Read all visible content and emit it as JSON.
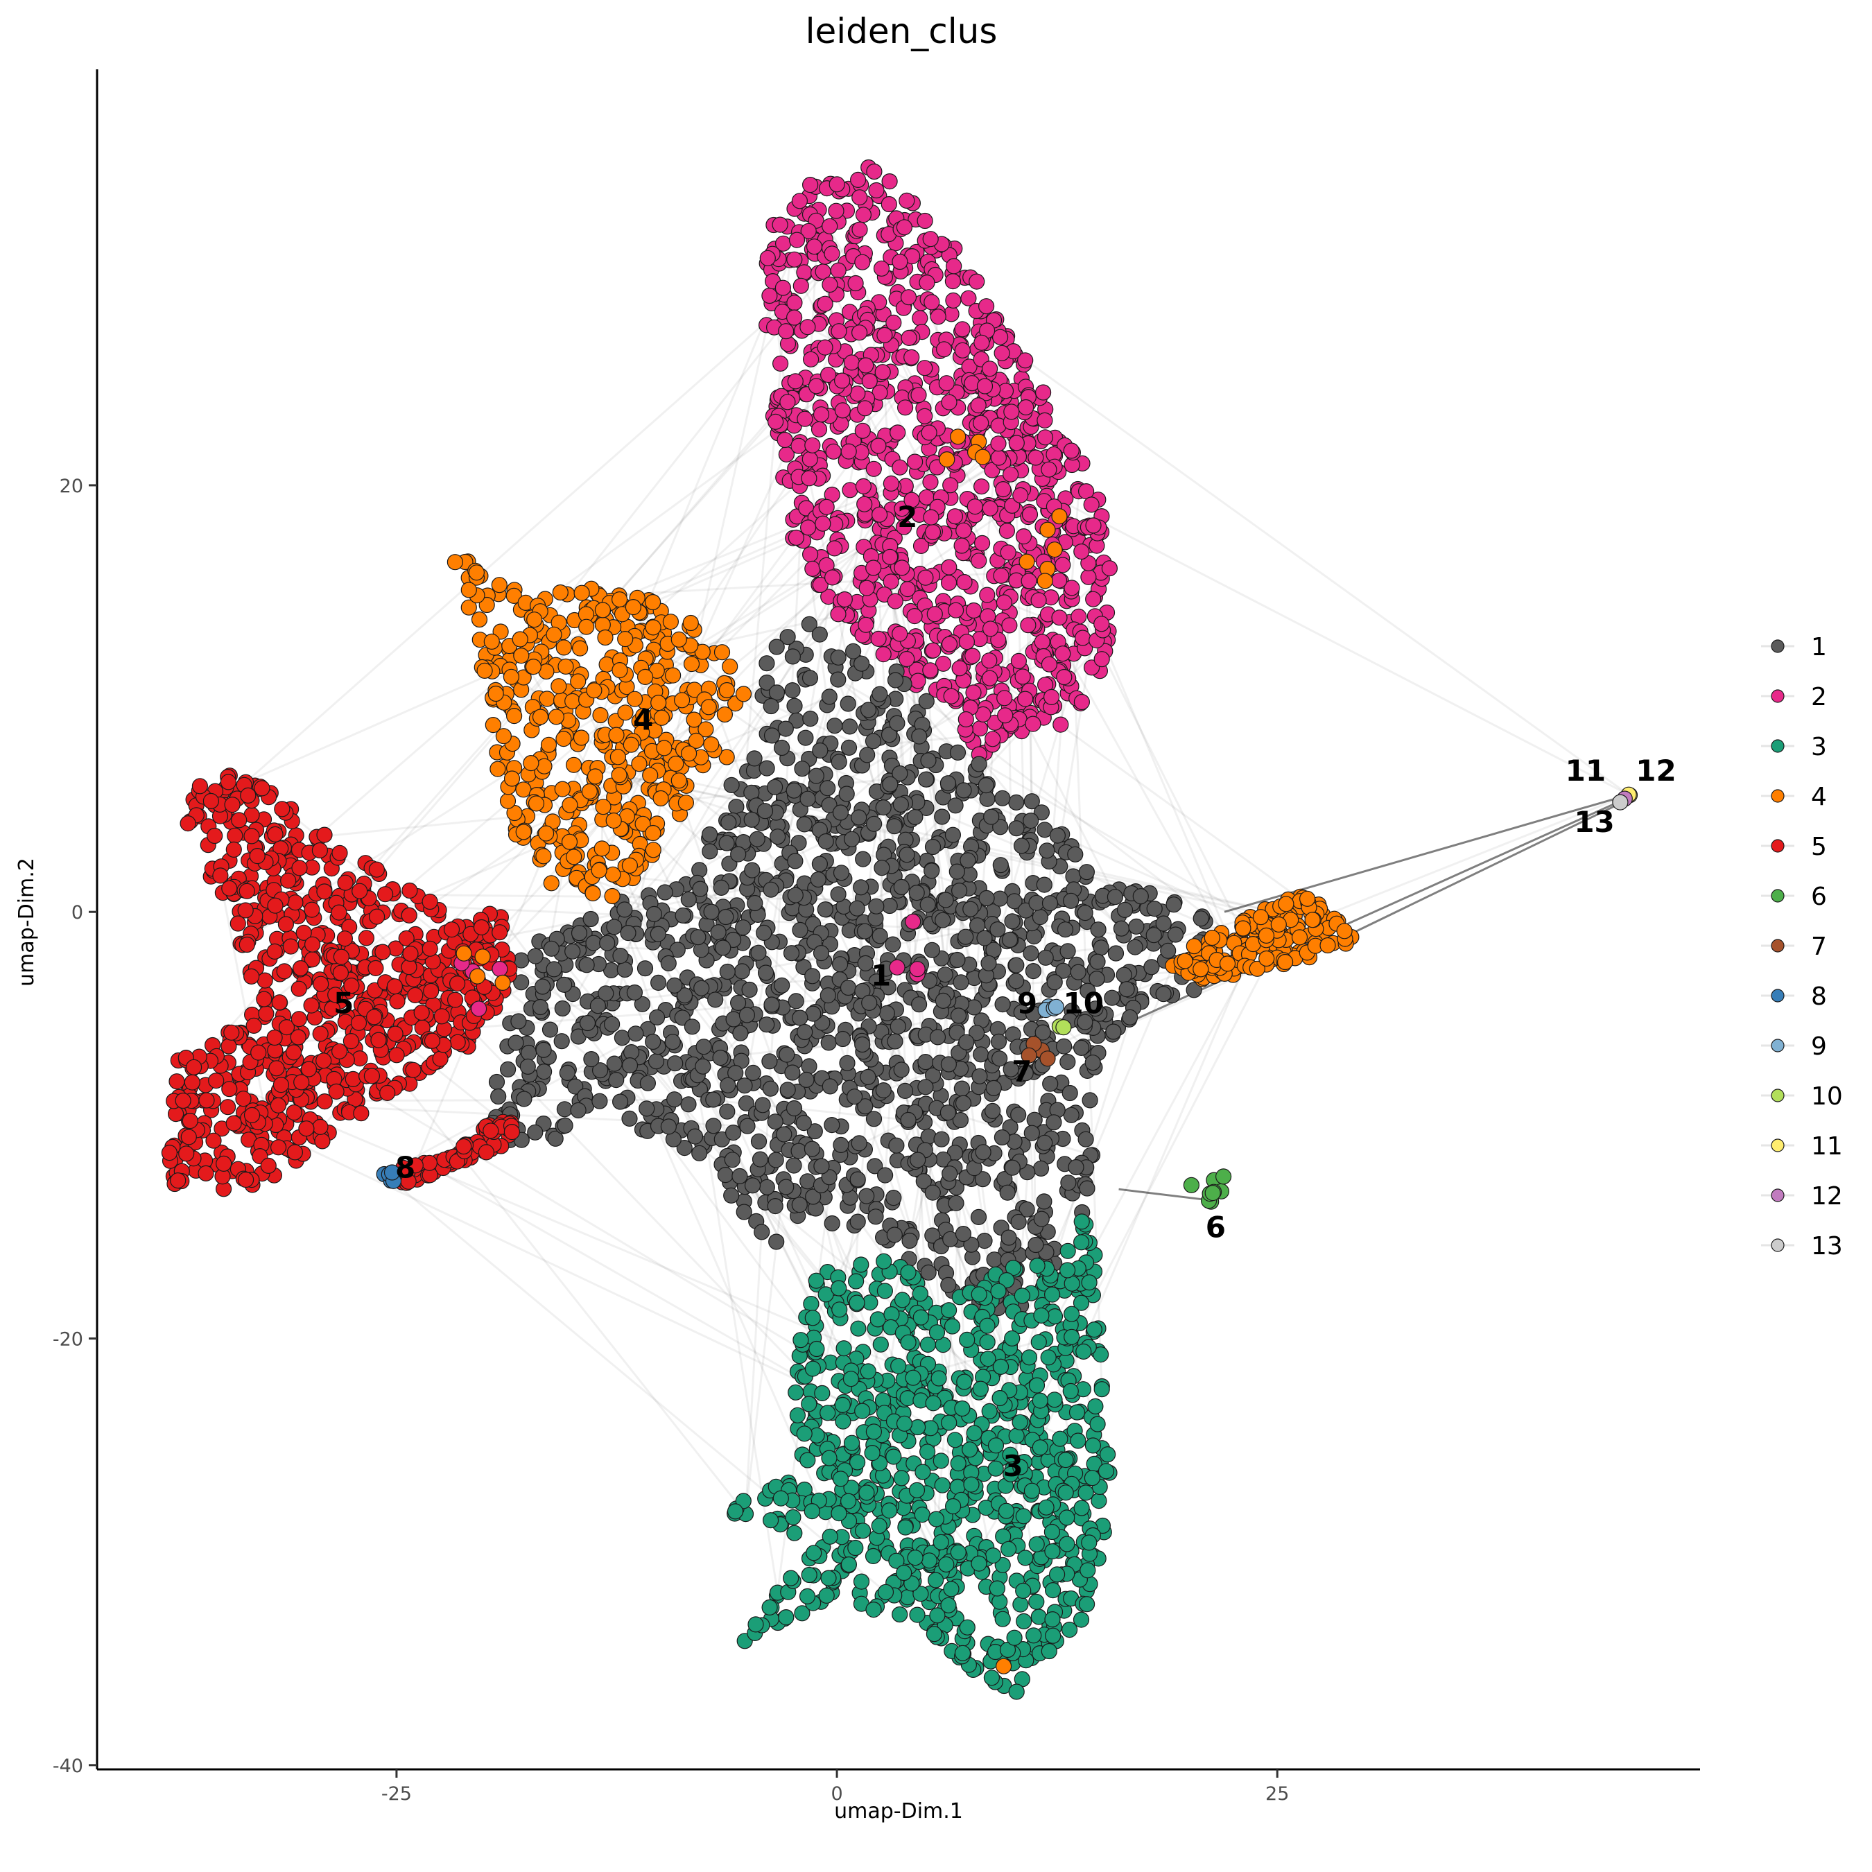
{
  "chart_data": {
    "type": "scatter",
    "title": "leiden_clus",
    "xlabel": "umap-Dim.1",
    "ylabel": "umap-Dim.2",
    "xlim": [
      -42,
      49
    ],
    "ylim": [
      -40.2,
      39.5
    ],
    "x_ticks": [
      {
        "value": -25,
        "label": "-25"
      },
      {
        "value": 0,
        "label": "0"
      },
      {
        "value": 25,
        "label": "25"
      }
    ],
    "y_ticks": [
      {
        "value": -40,
        "label": "-40"
      },
      {
        "value": -20,
        "label": "-20"
      },
      {
        "value": 0,
        "label": "0"
      },
      {
        "value": 20,
        "label": "20"
      }
    ],
    "grid": false,
    "legend_position": "right",
    "clusters": [
      {
        "name": "1",
        "color": "#5b5b5b",
        "centroid": [
          2.5,
          -3
        ],
        "label_at": [
          2.5,
          -3
        ]
      },
      {
        "name": "2",
        "color": "#e7298a",
        "centroid": [
          4,
          18.5
        ],
        "label_at": [
          4,
          18.5
        ]
      },
      {
        "name": "3",
        "color": "#1b9e77",
        "centroid": [
          10,
          -26
        ],
        "label_at": [
          10,
          -26
        ]
      },
      {
        "name": "4",
        "color": "#ff7f00",
        "centroid": [
          -11,
          9
        ],
        "label_at": [
          -11,
          9
        ]
      },
      {
        "name": "5",
        "color": "#e41a1c",
        "centroid": [
          -28,
          -4.3
        ],
        "label_at": [
          -28,
          -4.3
        ]
      },
      {
        "name": "6",
        "color": "#4daf4a",
        "centroid": [
          21.5,
          -14.8
        ],
        "label_at": [
          21.5,
          -14.8
        ]
      },
      {
        "name": "7",
        "color": "#a6522b",
        "centroid": [
          10.5,
          -7.5
        ],
        "label_at": [
          10.5,
          -7.5
        ]
      },
      {
        "name": "8",
        "color": "#377eb8",
        "centroid": [
          -24.5,
          -12
        ],
        "label_at": [
          -24.5,
          -12
        ]
      },
      {
        "name": "9",
        "color": "#80b1d3",
        "centroid": [
          10.8,
          -4.3
        ],
        "label_at": [
          10.8,
          -4.3
        ]
      },
      {
        "name": "10",
        "color": "#b2df5a",
        "centroid": [
          14,
          -4.3
        ],
        "label_at": [
          14,
          -4.3
        ]
      },
      {
        "name": "11",
        "color": "#ffed6f",
        "centroid": [
          42.5,
          6.6
        ],
        "label_at": [
          42.5,
          6.6
        ]
      },
      {
        "name": "12",
        "color": "#c17bbf",
        "centroid": [
          46.5,
          6.6
        ],
        "label_at": [
          46.5,
          6.6
        ]
      },
      {
        "name": "13",
        "color": "#cccccc",
        "centroid": [
          43,
          4.2
        ],
        "label_at": [
          43,
          4.2
        ]
      }
    ]
  }
}
